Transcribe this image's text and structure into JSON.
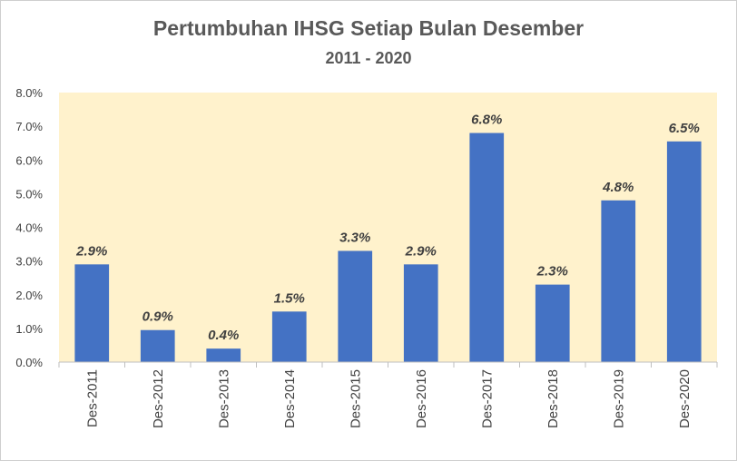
{
  "chart_data": {
    "type": "bar",
    "title": "Pertumbuhan IHSG Setiap Bulan Desember",
    "subtitle": "2011 - 2020",
    "categories": [
      "Des-2011",
      "Des-2012",
      "Des-2013",
      "Des-2014",
      "Des-2015",
      "Des-2016",
      "Des-2017",
      "Des-2018",
      "Des-2019",
      "Des-2020"
    ],
    "values": [
      2.9,
      0.95,
      0.4,
      1.5,
      3.3,
      2.9,
      6.8,
      2.3,
      4.8,
      6.55
    ],
    "data_labels": [
      "2.9%",
      "0.9%",
      "0.4%",
      "1.5%",
      "3.3%",
      "2.9%",
      "6.8%",
      "2.3%",
      "4.8%",
      "6.5%"
    ],
    "y_ticks": [
      "0.0%",
      "1.0%",
      "2.0%",
      "3.0%",
      "4.0%",
      "5.0%",
      "6.0%",
      "7.0%",
      "8.0%"
    ],
    "ylim": [
      0,
      8
    ],
    "xlabel": "",
    "ylabel": "",
    "grid": false,
    "legend": "none",
    "colors": {
      "bar": "#4472c4",
      "plot_background": "#fff2cc",
      "text": "#595959"
    }
  }
}
